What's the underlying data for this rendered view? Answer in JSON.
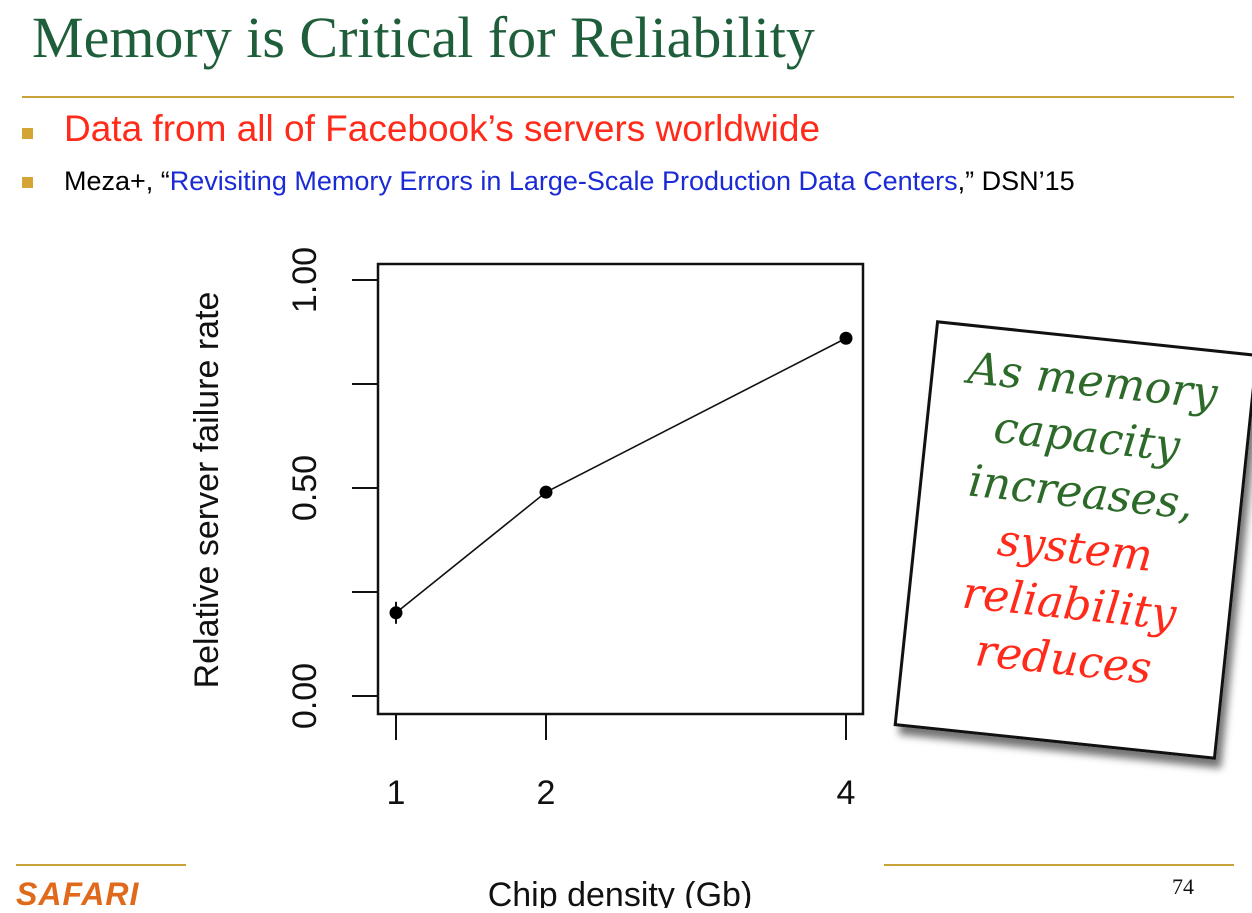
{
  "slide": {
    "title": "Memory is Critical for Reliability",
    "bullet1": "Data from all of Facebook’s servers worldwide",
    "bullet2_prefix": "Meza+, “",
    "bullet2_paper": "Revisiting Memory Errors in Large-Scale Production Data Centers",
    "bullet2_suffix": ",” DSN’15",
    "footer_logo": "SAFARI",
    "page_number": "74"
  },
  "callout": {
    "lines_green": [
      "As memory",
      "capacity",
      "increases,"
    ],
    "lines_red": [
      "system",
      "reliability",
      "reduces"
    ]
  },
  "chart_data": {
    "type": "line",
    "xlabel": "Chip density (Gb)",
    "ylabel": "Relative server failure rate",
    "x_categories": [
      "1",
      "2",
      "4"
    ],
    "x": [
      1,
      2,
      4
    ],
    "y": [
      0.2,
      0.49,
      0.86
    ],
    "y_ticks": [
      "0.00",
      "0.50",
      "1.00"
    ],
    "ylim": [
      0,
      1
    ],
    "grid": false,
    "colors": {
      "line": "#111111",
      "points": "#000000"
    }
  }
}
